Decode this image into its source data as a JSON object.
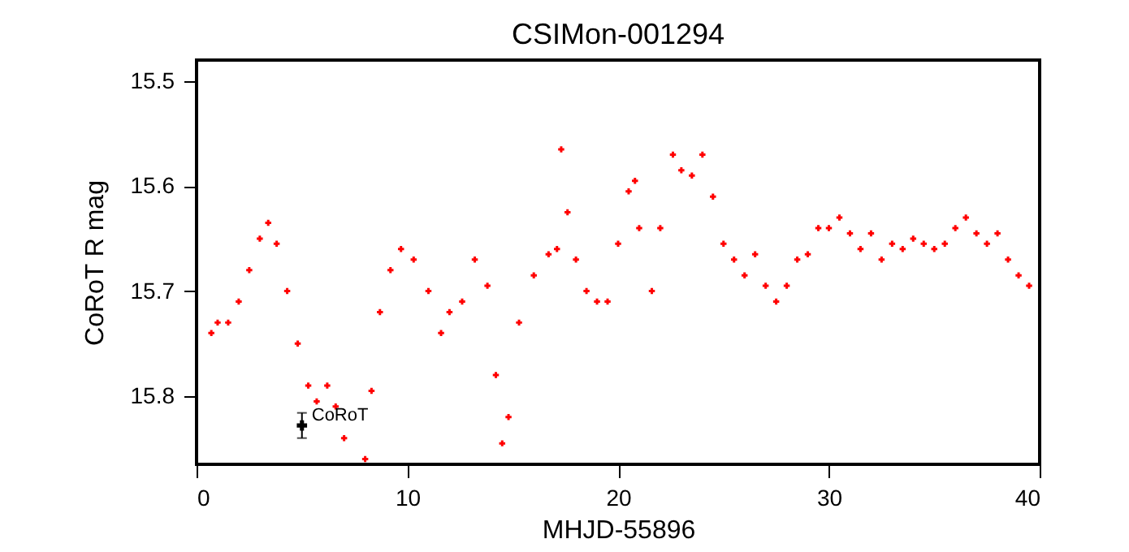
{
  "chart_data": {
    "type": "scatter",
    "title": "CSIMon-001294",
    "xlabel": "MHJD-55896",
    "ylabel": "CoRoT R mag",
    "xlim": [
      0,
      40
    ],
    "xticks": [
      0,
      10,
      20,
      30,
      40
    ],
    "ylim": [
      15.865,
      15.48
    ],
    "yticks": [
      15.5,
      15.6,
      15.7,
      15.8
    ],
    "marker": "cross",
    "grid": false,
    "annotations": [
      {
        "text": "CoRoT",
        "x": 5,
        "y": 15.828
      }
    ],
    "series": [
      {
        "color": "#ff0000",
        "x": [
          0.7,
          1.0,
          1.5,
          2.0,
          2.5,
          3.0,
          3.4,
          3.8,
          4.3,
          4.8,
          5.3,
          5.7,
          6.2,
          6.6,
          7.0,
          8.0,
          8.3,
          8.7,
          9.2,
          9.7,
          10.3,
          11,
          11.6,
          12,
          12.6,
          13.2,
          13.8,
          14.2,
          14.5,
          14.8,
          15.3,
          16,
          16.7,
          17.1,
          17.3,
          17.6,
          18,
          18.5,
          19,
          19.5,
          20,
          20.5,
          20.8,
          21,
          21.6,
          22,
          22.6,
          23,
          23.5,
          24,
          24.5,
          25,
          25.5,
          26,
          26.5,
          27,
          27.5,
          28,
          28.5,
          29,
          29.5,
          30,
          30.5,
          31,
          31.5,
          32,
          32.5,
          33,
          33.5,
          34,
          34.5,
          35,
          35.5,
          36,
          36.5,
          37,
          37.5,
          38,
          38.5,
          39,
          39.5
        ],
        "values": [
          15.74,
          15.73,
          15.73,
          15.71,
          15.68,
          15.65,
          15.635,
          15.655,
          15.7,
          15.75,
          15.79,
          15.805,
          15.79,
          15.81,
          15.84,
          15.86,
          15.795,
          15.72,
          15.68,
          15.66,
          15.67,
          15.7,
          15.74,
          15.72,
          15.71,
          15.67,
          15.695,
          15.78,
          15.845,
          15.82,
          15.73,
          15.685,
          15.665,
          15.66,
          15.565,
          15.625,
          15.67,
          15.7,
          15.71,
          15.71,
          15.655,
          15.605,
          15.595,
          15.64,
          15.7,
          15.64,
          15.57,
          15.585,
          15.59,
          15.57,
          15.61,
          15.655,
          15.67,
          15.685,
          15.665,
          15.695,
          15.71,
          15.695,
          15.67,
          15.665,
          15.64,
          15.64,
          15.63,
          15.645,
          15.66,
          15.645,
          15.67,
          15.655,
          15.66,
          15.65,
          15.655,
          15.66,
          15.655,
          15.64,
          15.63,
          15.645,
          15.655,
          15.645,
          15.67,
          15.685,
          15.695
        ]
      },
      {
        "color": "#000000",
        "x": [
          5
        ],
        "values": [
          15.828
        ],
        "errors": [
          0.012
        ]
      }
    ]
  }
}
